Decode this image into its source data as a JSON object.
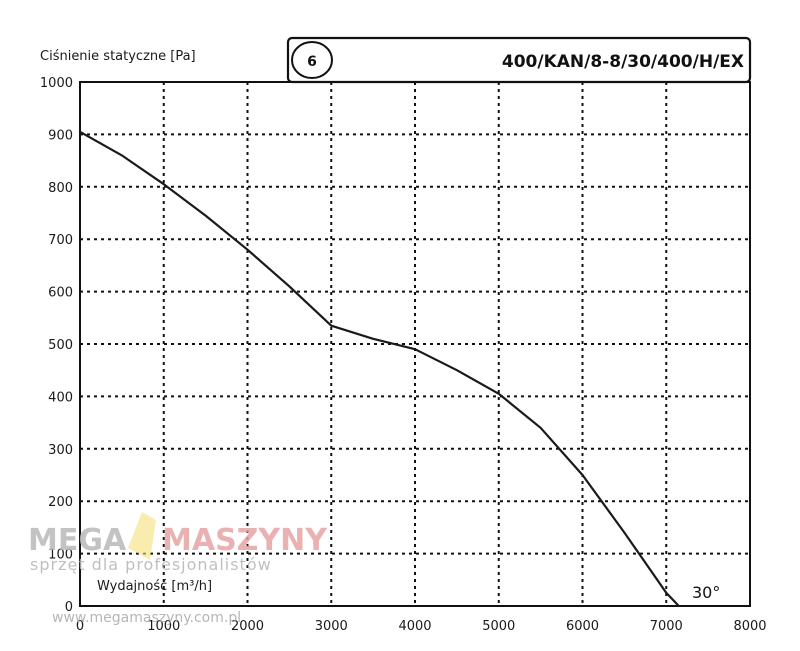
{
  "header": {
    "badge": "6",
    "model": "400/KAN/8-8/30/400/H/EX"
  },
  "chart_data": {
    "type": "line",
    "ylabel": "Ciśnienie statyczne [Pa]",
    "xlabel": "Wydajność [m³/h]",
    "xlim": [
      0,
      8000
    ],
    "ylim": [
      0,
      1000
    ],
    "xticks": [
      "0",
      "1000",
      "2000",
      "3000",
      "4000",
      "5000",
      "6000",
      "7000",
      "8000"
    ],
    "yticks": [
      "0",
      "100",
      "200",
      "300",
      "400",
      "500",
      "600",
      "700",
      "800",
      "900",
      "1000"
    ],
    "grid": true,
    "grid_style": "dotted",
    "line_color": "#1a1a1a",
    "annotation": "30°",
    "series": [
      {
        "x": [
          0,
          500,
          1000,
          1500,
          2000,
          2500,
          3000,
          3500,
          4000,
          4500,
          5000,
          5500,
          6000,
          6500,
          7000,
          7150
        ],
        "y": [
          905,
          860,
          805,
          745,
          680,
          610,
          535,
          510,
          490,
          450,
          405,
          340,
          250,
          140,
          25,
          0
        ]
      }
    ]
  },
  "watermark": {
    "brand_left": "MEGA",
    "brand_right": "MASZYNY",
    "tagline": "sprzęt dla profesjonalistów",
    "url": "www.megamaszyny.com.pl"
  }
}
